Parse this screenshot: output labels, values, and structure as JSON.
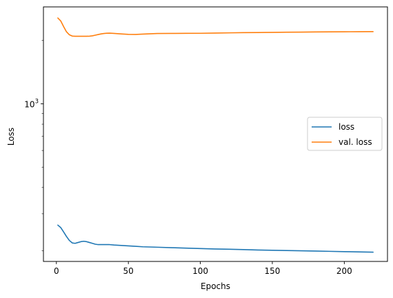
{
  "chart_data": {
    "type": "line",
    "title": "",
    "xlabel": "Epochs",
    "ylabel": "Loss",
    "xlim": [
      -9,
      230
    ],
    "ylim": [
      178,
      2890
    ],
    "yscale": "log",
    "grid": false,
    "legend_position": "right",
    "x_ticks": [
      {
        "value": 0,
        "label": "0"
      },
      {
        "value": 50,
        "label": "50"
      },
      {
        "value": 100,
        "label": "100"
      },
      {
        "value": 150,
        "label": "150"
      },
      {
        "value": 200,
        "label": "200"
      }
    ],
    "y_major_ticks": [
      {
        "value": 1000,
        "base": "10",
        "exponent": "3"
      }
    ],
    "y_minor_ticks": [
      200,
      300,
      400,
      500,
      600,
      700,
      800,
      900,
      2000
    ],
    "series": [
      {
        "name": "loss",
        "color": "#1f77b4",
        "x": [
          1,
          3,
          5,
          7,
          9,
          11,
          13,
          15,
          17,
          19,
          21,
          23,
          25,
          27,
          29,
          31,
          33,
          35,
          37,
          40,
          45,
          50,
          55,
          60,
          70,
          80,
          90,
          100,
          110,
          120,
          130,
          140,
          150,
          160,
          170,
          180,
          190,
          200,
          210,
          220
        ],
        "y": [
          265,
          258,
          246,
          234,
          224,
          218,
          217,
          219,
          221,
          222,
          221,
          219,
          217,
          215,
          214,
          214,
          214,
          214,
          214,
          213,
          212,
          211,
          210,
          209,
          208,
          207,
          206,
          205,
          204,
          203.4,
          202.6,
          201.8,
          201.2,
          200.6,
          200,
          199.4,
          198.8,
          198.2,
          197.6,
          197
        ]
      },
      {
        "name": "val. loss",
        "color": "#ff7f0e",
        "x": [
          1,
          3,
          5,
          7,
          9,
          11,
          13,
          15,
          17,
          19,
          21,
          23,
          25,
          27,
          29,
          31,
          33,
          35,
          37,
          40,
          45,
          50,
          55,
          60,
          70,
          80,
          90,
          100,
          110,
          120,
          130,
          140,
          150,
          160,
          170,
          180,
          190,
          200,
          210,
          220
        ],
        "y": [
          2560,
          2480,
          2330,
          2200,
          2130,
          2100,
          2095,
          2095,
          2095,
          2095,
          2095,
          2098,
          2105,
          2120,
          2135,
          2150,
          2160,
          2166,
          2168,
          2162,
          2150,
          2140,
          2138,
          2145,
          2160,
          2162,
          2163,
          2165,
          2170,
          2175,
          2180,
          2183,
          2186,
          2190,
          2193,
          2196,
          2199,
          2201,
          2203,
          2205
        ]
      }
    ]
  }
}
